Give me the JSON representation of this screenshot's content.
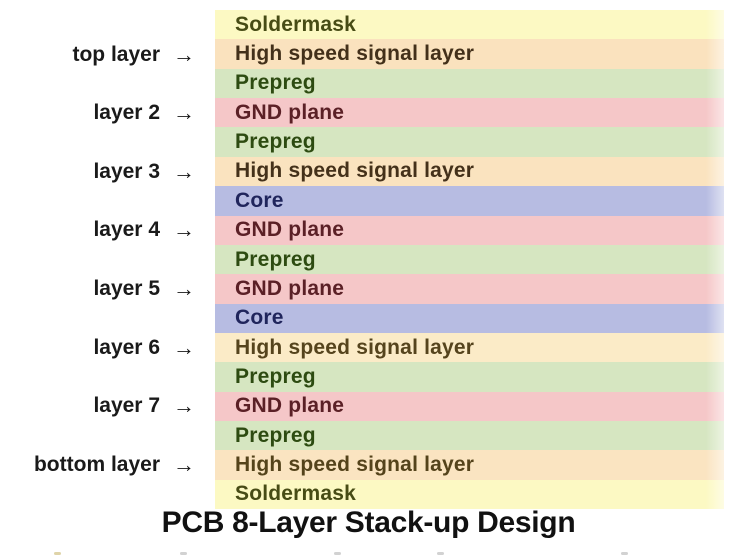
{
  "title": "PCB 8-Layer Stack-up Design",
  "arrow": "→",
  "colors": {
    "soldermask_bg": "#FCF9C3",
    "soldermask_fg": "#474C15",
    "signal_bg": "#FAE2BE",
    "signal_fg": "#43301A",
    "signal_light_bg": "#FBEBC7",
    "signal_light_fg": "#55441D",
    "prepreg_bg": "#D6E6C1",
    "prepreg_fg": "#2D4B11",
    "gnd_bg": "#F5C7C8",
    "gnd_fg": "#5B2026",
    "core_bg": "#B7BCE2",
    "core_fg": "#20255C",
    "label_fg": "#1A1A1A",
    "title_fg": "#111111"
  },
  "stack": {
    "layers": [
      {
        "label": "Soldermask",
        "material": "soldermask",
        "bg": "#FCF9C3",
        "fg": "#474C15"
      },
      {
        "label": "High speed signal layer",
        "material": "signal",
        "bg": "#FAE2BE",
        "fg": "#43301A"
      },
      {
        "label": "Prepreg",
        "material": "prepreg",
        "bg": "#D6E6C1",
        "fg": "#2D4B11"
      },
      {
        "label": "GND plane",
        "material": "gnd",
        "bg": "#F5C7C8",
        "fg": "#5B2026"
      },
      {
        "label": "Prepreg",
        "material": "prepreg",
        "bg": "#D6E6C1",
        "fg": "#2D4B11"
      },
      {
        "label": "High speed signal layer",
        "material": "signal",
        "bg": "#FAE3BF",
        "fg": "#44311A"
      },
      {
        "label": "Core",
        "material": "core",
        "bg": "#B7BCE2",
        "fg": "#20255C"
      },
      {
        "label": "GND plane",
        "material": "gnd",
        "bg": "#F5C7C8",
        "fg": "#5B2026"
      },
      {
        "label": "Prepreg",
        "material": "prepreg",
        "bg": "#D6E6C1",
        "fg": "#2D4B11"
      },
      {
        "label": "GND plane",
        "material": "gnd",
        "bg": "#F5C7C8",
        "fg": "#5B2026"
      },
      {
        "label": "Core",
        "material": "core",
        "bg": "#B7BCE2",
        "fg": "#20255C"
      },
      {
        "label": "High speed signal layer",
        "material": "signal",
        "bg": "#FBEBC7",
        "fg": "#55441D"
      },
      {
        "label": "Prepreg",
        "material": "prepreg",
        "bg": "#D6E6C1",
        "fg": "#2D4B11"
      },
      {
        "label": "GND plane",
        "material": "gnd",
        "bg": "#F5C7C8",
        "fg": "#5B2026"
      },
      {
        "label": "Prepreg",
        "material": "prepreg",
        "bg": "#D6E6C1",
        "fg": "#2D4B11"
      },
      {
        "label": "High speed signal layer",
        "material": "signal",
        "bg": "#FAE4C1",
        "fg": "#54431B"
      },
      {
        "label": "Soldermask",
        "material": "soldermask",
        "bg": "#FCF9C3",
        "fg": "#474C15"
      }
    ]
  },
  "side_labels": [
    {
      "text": "top layer"
    },
    {
      "text": "layer 2"
    },
    {
      "text": "layer 3"
    },
    {
      "text": "layer 4"
    },
    {
      "text": "layer 5"
    },
    {
      "text": "layer 6"
    },
    {
      "text": "layer 7"
    },
    {
      "text": "bottom layer"
    }
  ]
}
